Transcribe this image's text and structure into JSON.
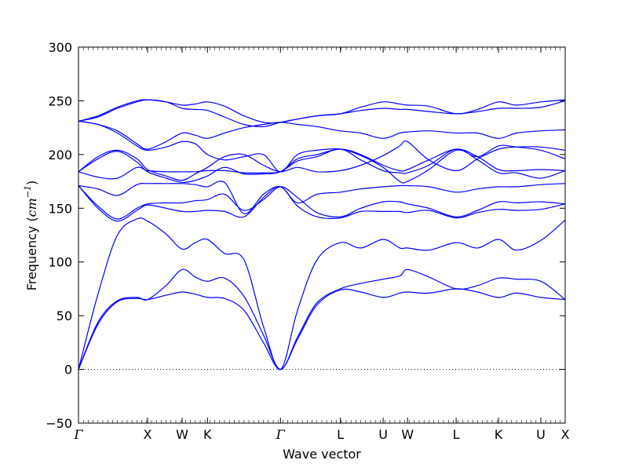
{
  "chart_data": {
    "type": "line",
    "title": "",
    "xlabel": "Wave vector",
    "ylabel": {
      "text": "Frequency (",
      "unit": "cm",
      "unit_exp": "−1",
      "close": ")"
    },
    "ylim": [
      -50,
      300
    ],
    "yticks": [
      -50,
      0,
      50,
      100,
      150,
      200,
      250,
      300
    ],
    "xlim": [
      0,
      1
    ],
    "xticks": [
      {
        "pos": 0.0,
        "label": "Γ"
      },
      {
        "pos": 0.142,
        "label": "X"
      },
      {
        "pos": 0.213,
        "label": "W"
      },
      {
        "pos": 0.265,
        "label": "K"
      },
      {
        "pos": 0.415,
        "label": "Γ"
      },
      {
        "pos": 0.538,
        "label": "L"
      },
      {
        "pos": 0.626,
        "label": "U"
      },
      {
        "pos": 0.676,
        "label": "W"
      },
      {
        "pos": 0.776,
        "label": "L"
      },
      {
        "pos": 0.863,
        "label": "K"
      },
      {
        "pos": 0.95,
        "label": "U"
      },
      {
        "pos": 1.0,
        "label": "X"
      }
    ],
    "zero_line": {
      "y": 0,
      "style": "dotted"
    },
    "line_color": "#0000ff",
    "series": [
      {
        "x": [
          0,
          0.04,
          0.08,
          0.12,
          0.142,
          0.18,
          0.213,
          0.24,
          0.265,
          0.3,
          0.34,
          0.38,
          0.415,
          0.45,
          0.49,
          0.538,
          0.58,
          0.626,
          0.66,
          0.676,
          0.72,
          0.776,
          0.82,
          0.863,
          0.9,
          0.95,
          1.0
        ],
        "values": [
          0,
          42,
          63,
          66,
          65,
          69,
          72,
          70,
          67,
          66,
          55,
          25,
          0,
          28,
          60,
          74,
          72,
          67,
          71,
          72,
          71,
          75,
          72,
          67,
          71,
          67,
          65
        ]
      },
      {
        "x": [
          0,
          0.04,
          0.08,
          0.12,
          0.142,
          0.18,
          0.213,
          0.24,
          0.265,
          0.3,
          0.34,
          0.38,
          0.415,
          0.45,
          0.49,
          0.538,
          0.58,
          0.626,
          0.66,
          0.676,
          0.72,
          0.776,
          0.82,
          0.863,
          0.9,
          0.95,
          1.0
        ],
        "values": [
          0,
          44,
          64,
          67,
          65,
          78,
          93,
          86,
          82,
          85,
          68,
          32,
          0,
          30,
          62,
          75,
          80,
          84,
          87,
          93,
          86,
          75,
          78,
          85,
          84,
          82,
          65
        ]
      },
      {
        "x": [
          0,
          0.04,
          0.08,
          0.12,
          0.142,
          0.18,
          0.213,
          0.24,
          0.265,
          0.3,
          0.34,
          0.38,
          0.415,
          0.45,
          0.49,
          0.538,
          0.58,
          0.626,
          0.66,
          0.676,
          0.72,
          0.776,
          0.82,
          0.863,
          0.9,
          0.95,
          1.0
        ],
        "values": [
          0,
          70,
          125,
          140,
          138,
          126,
          112,
          118,
          121,
          108,
          102,
          40,
          0,
          55,
          102,
          118,
          113,
          121,
          113,
          113,
          111,
          118,
          113,
          121,
          111,
          120,
          139
        ]
      },
      {
        "x": [
          0,
          0.04,
          0.08,
          0.12,
          0.142,
          0.18,
          0.213,
          0.24,
          0.265,
          0.3,
          0.34,
          0.38,
          0.415,
          0.45,
          0.49,
          0.538,
          0.58,
          0.626,
          0.66,
          0.676,
          0.72,
          0.776,
          0.82,
          0.863,
          0.9,
          0.95,
          1.0
        ],
        "values": [
          171,
          150,
          138,
          148,
          153,
          150,
          147,
          147,
          148,
          147,
          142,
          160,
          170,
          152,
          142,
          141,
          147,
          147,
          147,
          146,
          148,
          141,
          146,
          149,
          148,
          149,
          154
        ]
      },
      {
        "x": [
          0,
          0.04,
          0.08,
          0.12,
          0.142,
          0.18,
          0.213,
          0.24,
          0.265,
          0.3,
          0.34,
          0.38,
          0.415,
          0.45,
          0.49,
          0.538,
          0.58,
          0.626,
          0.66,
          0.676,
          0.72,
          0.776,
          0.82,
          0.863,
          0.9,
          0.95,
          1.0
        ],
        "values": [
          171,
          152,
          140,
          150,
          154,
          155,
          155,
          157,
          158,
          163,
          148,
          158,
          170,
          160,
          146,
          142,
          150,
          156,
          156,
          154,
          150,
          142,
          148,
          156,
          155,
          156,
          154
        ]
      },
      {
        "x": [
          0,
          0.04,
          0.08,
          0.12,
          0.142,
          0.18,
          0.213,
          0.24,
          0.265,
          0.3,
          0.34,
          0.38,
          0.415,
          0.45,
          0.49,
          0.538,
          0.58,
          0.626,
          0.66,
          0.676,
          0.72,
          0.776,
          0.82,
          0.863,
          0.9,
          0.95,
          1.0
        ],
        "values": [
          171,
          168,
          162,
          172,
          173,
          173,
          173,
          172,
          170,
          174,
          145,
          163,
          170,
          155,
          163,
          165,
          168,
          170,
          171,
          171,
          170,
          165,
          168,
          170,
          170,
          172,
          173
        ]
      },
      {
        "x": [
          0,
          0.04,
          0.08,
          0.12,
          0.142,
          0.18,
          0.213,
          0.24,
          0.265,
          0.3,
          0.34,
          0.38,
          0.415,
          0.45,
          0.49,
          0.538,
          0.58,
          0.626,
          0.66,
          0.676,
          0.72,
          0.776,
          0.82,
          0.863,
          0.9,
          0.95,
          1.0
        ],
        "values": [
          184,
          179,
          178,
          188,
          185,
          184,
          184,
          184,
          185,
          185,
          183,
          183,
          184,
          194,
          198,
          205,
          195,
          185,
          183,
          183,
          190,
          205,
          195,
          183,
          183,
          178,
          185
        ]
      },
      {
        "x": [
          0,
          0.04,
          0.08,
          0.12,
          0.142,
          0.18,
          0.213,
          0.24,
          0.265,
          0.3,
          0.34,
          0.38,
          0.415,
          0.45,
          0.49,
          0.538,
          0.58,
          0.626,
          0.66,
          0.676,
          0.72,
          0.776,
          0.82,
          0.863,
          0.9,
          0.95,
          1.0
        ],
        "values": [
          184,
          196,
          203,
          193,
          184,
          178,
          174,
          176,
          180,
          188,
          182,
          182,
          184,
          196,
          200,
          205,
          200,
          190,
          185,
          186,
          195,
          205,
          198,
          186,
          185,
          186,
          185
        ]
      },
      {
        "x": [
          0,
          0.04,
          0.08,
          0.12,
          0.142,
          0.18,
          0.213,
          0.24,
          0.265,
          0.3,
          0.34,
          0.38,
          0.415,
          0.45,
          0.49,
          0.538,
          0.58,
          0.626,
          0.66,
          0.676,
          0.72,
          0.776,
          0.82,
          0.863,
          0.9,
          0.95,
          1.0
        ],
        "values": [
          184,
          198,
          204,
          196,
          186,
          180,
          176,
          182,
          188,
          198,
          200,
          190,
          184,
          188,
          184,
          185,
          190,
          199,
          208,
          212,
          195,
          185,
          196,
          205,
          207,
          207,
          204
        ]
      },
      {
        "x": [
          0,
          0.04,
          0.08,
          0.12,
          0.142,
          0.18,
          0.213,
          0.24,
          0.265,
          0.3,
          0.34,
          0.38,
          0.415,
          0.45,
          0.49,
          0.538,
          0.58,
          0.626,
          0.66,
          0.676,
          0.72,
          0.776,
          0.82,
          0.863,
          0.9,
          0.95,
          1.0
        ],
        "values": [
          231,
          228,
          220,
          208,
          204,
          207,
          212,
          210,
          200,
          195,
          198,
          200,
          184,
          200,
          204,
          205,
          199,
          188,
          175,
          175,
          186,
          204,
          198,
          208,
          207,
          204,
          196
        ]
      },
      {
        "x": [
          0,
          0.04,
          0.08,
          0.12,
          0.142,
          0.18,
          0.213,
          0.24,
          0.265,
          0.3,
          0.34,
          0.38,
          0.415,
          0.45,
          0.49,
          0.538,
          0.58,
          0.626,
          0.66,
          0.676,
          0.72,
          0.776,
          0.82,
          0.863,
          0.9,
          0.95,
          1.0
        ],
        "values": [
          231,
          228,
          222,
          210,
          205,
          212,
          220,
          218,
          215,
          220,
          225,
          228,
          230,
          228,
          226,
          222,
          220,
          215,
          220,
          221,
          222,
          220,
          220,
          215,
          220,
          222,
          223
        ]
      },
      {
        "x": [
          0,
          0.04,
          0.08,
          0.12,
          0.142,
          0.18,
          0.213,
          0.24,
          0.265,
          0.3,
          0.34,
          0.38,
          0.415,
          0.45,
          0.49,
          0.538,
          0.58,
          0.626,
          0.66,
          0.676,
          0.72,
          0.776,
          0.82,
          0.863,
          0.9,
          0.95,
          1.0
        ],
        "values": [
          231,
          235,
          243,
          249,
          251,
          249,
          243,
          242,
          241,
          235,
          228,
          226,
          230,
          233,
          236,
          238,
          241,
          243,
          242,
          242,
          240,
          238,
          240,
          243,
          243,
          244,
          250
        ]
      },
      {
        "x": [
          0,
          0.04,
          0.08,
          0.12,
          0.142,
          0.18,
          0.213,
          0.24,
          0.265,
          0.3,
          0.34,
          0.38,
          0.415,
          0.45,
          0.49,
          0.538,
          0.58,
          0.626,
          0.66,
          0.676,
          0.72,
          0.776,
          0.82,
          0.863,
          0.9,
          0.95,
          1.0
        ],
        "values": [
          231,
          236,
          244,
          250,
          251,
          249,
          246,
          247,
          249,
          245,
          236,
          230,
          230,
          233,
          236,
          238,
          244,
          249,
          247,
          246,
          245,
          238,
          242,
          249,
          246,
          249,
          251
        ]
      }
    ]
  }
}
